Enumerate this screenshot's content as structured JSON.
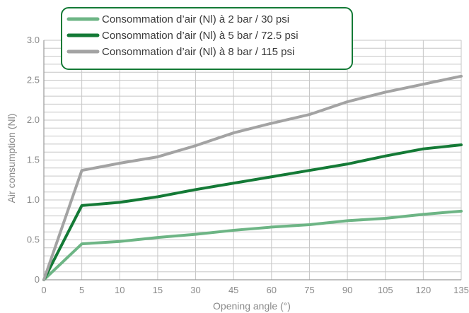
{
  "chart_data": {
    "type": "line",
    "categories": [
      "0",
      "5",
      "10",
      "15",
      "30",
      "45",
      "60",
      "75",
      "90",
      "105",
      "120",
      "135"
    ],
    "series": [
      {
        "name": "Consommation d’air (Nl) à 2 bar / 30 psi",
        "color": "#6db585",
        "values": [
          0,
          0.45,
          0.48,
          0.53,
          0.57,
          0.62,
          0.66,
          0.69,
          0.74,
          0.77,
          0.82,
          0.86
        ]
      },
      {
        "name": "Consommation d’air (Nl) à 5 bar / 72.5 psi",
        "color": "#147a36",
        "values": [
          0,
          0.93,
          0.97,
          1.04,
          1.13,
          1.21,
          1.29,
          1.37,
          1.45,
          1.55,
          1.64,
          1.69
        ]
      },
      {
        "name": "Consommation d’air (Nl) à 8 bar / 115 psi",
        "color": "#a3a3a3",
        "values": [
          0,
          1.37,
          1.46,
          1.54,
          1.68,
          1.84,
          1.96,
          2.07,
          2.23,
          2.35,
          2.45,
          2.55
        ]
      }
    ],
    "xlabel": "Opening angle (°)",
    "ylabel": "Air consumption (Nl)",
    "ylim": [
      0,
      3.0
    ],
    "yticks": [
      "0",
      "0.5",
      "1.0",
      "1.5",
      "2.0",
      "2.5",
      "3.0"
    ],
    "grid": true,
    "legend_position": "top",
    "legend_border_color": "#147a36",
    "grid_color": "#c6c6c6"
  }
}
